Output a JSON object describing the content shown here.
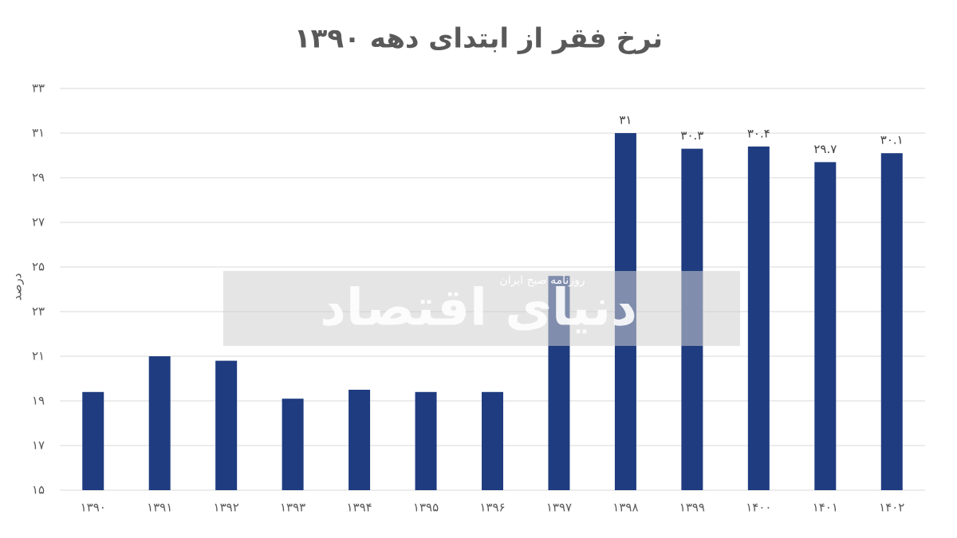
{
  "chart_data": {
    "type": "bar",
    "title": "نرخ فقر از ابتدای دهه ۱۳۹۰",
    "y_label": "درصد",
    "watermark": "دنیای اقتصاد",
    "watermark_subtitle": "روزنامه صبح ایران",
    "categories": [
      "۱۳۹۰",
      "۱۳۹۱",
      "۱۳۹۲",
      "۱۳۹۳",
      "۱۳۹۴",
      "۱۳۹۵",
      "۱۳۹۶",
      "۱۳۹۷",
      "۱۳۹۸",
      "۱۳۹۹",
      "۱۴۰۰",
      "۱۴۰۱",
      "۱۴۰۲"
    ],
    "values": [
      19.4,
      21.0,
      20.8,
      19.1,
      19.5,
      19.4,
      19.4,
      24.6,
      31,
      30.3,
      30.4,
      29.7,
      30.1
    ],
    "value_labels": [
      null,
      null,
      null,
      null,
      null,
      null,
      null,
      null,
      "۳۱",
      "۳۰.۳",
      "۳۰.۴",
      "۲۹.۷",
      "۳۰.۱"
    ],
    "color": "#1f3c80",
    "ylim": [
      15,
      33
    ],
    "yticks": [
      {
        "value": 15,
        "label": "۱۵"
      },
      {
        "value": 17,
        "label": "۱۷"
      },
      {
        "value": 19,
        "label": "۱۹"
      },
      {
        "value": 21,
        "label": "۲۱"
      },
      {
        "value": 23,
        "label": "۲۳"
      },
      {
        "value": 25,
        "label": "۲۵"
      },
      {
        "value": 27,
        "label": "۲۷"
      },
      {
        "value": 29,
        "label": "۲۹"
      },
      {
        "value": 31,
        "label": "۳۱"
      },
      {
        "value": 33,
        "label": "۳۳"
      }
    ],
    "grid": true
  }
}
